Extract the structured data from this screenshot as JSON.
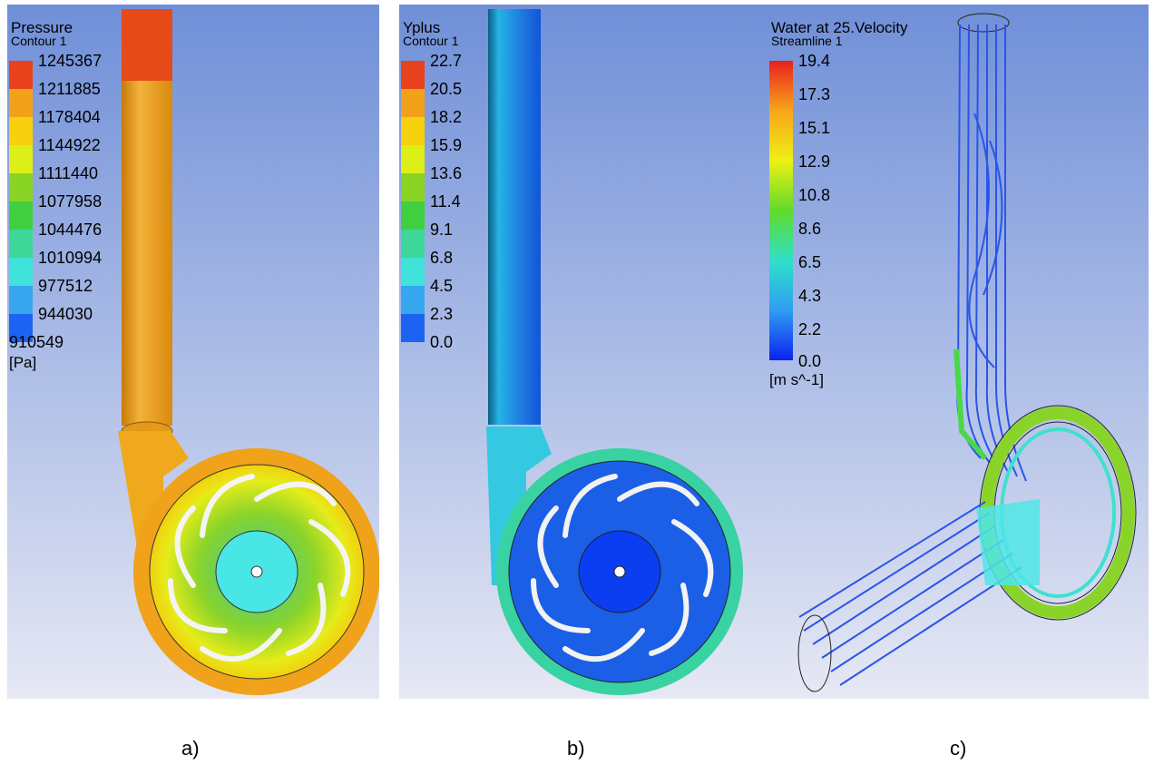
{
  "panels": [
    {
      "id": "a",
      "legend_title": "Pressure",
      "legend_subtitle": "Contour 1",
      "ticks": [
        "1245367",
        "1211885",
        "1178404",
        "1144922",
        "1111440",
        "1077958",
        "1044476",
        "1010994",
        "977512",
        "944030",
        "910549"
      ],
      "unit": "[Pa]",
      "colors": [
        "#e8431c",
        "#f4a11a",
        "#f7d00e",
        "#dcef16",
        "#8ad426",
        "#3fcf3f",
        "#3ed79a",
        "#3fe3da",
        "#36a7ef",
        "#1d63f2",
        "#0a2ff0"
      ],
      "caption": "a)"
    },
    {
      "id": "b",
      "legend_title": "Yplus",
      "legend_subtitle": "Contour 1",
      "ticks": [
        "22.7",
        "20.5",
        "18.2",
        "15.9",
        "13.6",
        "11.4",
        "9.1",
        "6.8",
        "4.5",
        "2.3",
        "0.0"
      ],
      "unit": "",
      "colors": [
        "#e8431c",
        "#f4a11a",
        "#f7d00e",
        "#dcef16",
        "#8ad426",
        "#3fcf3f",
        "#3ed79a",
        "#3fe3da",
        "#36a7ef",
        "#1d63f2",
        "#0a2ff0"
      ],
      "caption": "b)"
    },
    {
      "id": "c",
      "legend_title": "Water at 25.Velocity",
      "legend_subtitle": "Streamline 1",
      "ticks": [
        "19.4",
        "17.3",
        "15.1",
        "12.9",
        "10.8",
        "8.6",
        "6.5",
        "4.3",
        "2.2",
        "0.0"
      ],
      "unit": "[m s^-1]",
      "gradient": [
        "#e8201c",
        "#f7a51a",
        "#eef014",
        "#5fdb2a",
        "#2fe0c8",
        "#2f9ef2",
        "#0a22ef"
      ],
      "caption": "c)"
    }
  ]
}
